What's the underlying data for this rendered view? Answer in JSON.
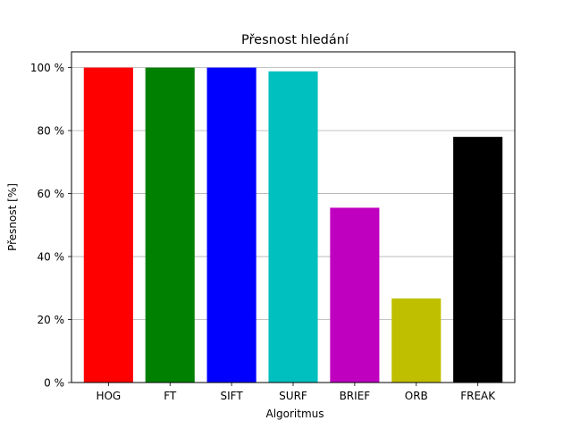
{
  "chart_data": {
    "type": "bar",
    "title": "Přesnost hledání",
    "xlabel": "Algoritmus",
    "ylabel": "Přesnost [%]",
    "categories": [
      "HOG",
      "FT",
      "SIFT",
      "SURF",
      "BRIEF",
      "ORB",
      "FREAK"
    ],
    "values": [
      100,
      100,
      100,
      98.8,
      55.5,
      26.7,
      78
    ],
    "colors": [
      "#ff0000",
      "#008000",
      "#0000ff",
      "#00bfbf",
      "#bf00bf",
      "#bfbf00",
      "#000000"
    ],
    "ylim": [
      0,
      105
    ],
    "yticks": [
      0,
      20,
      40,
      60,
      80,
      100
    ],
    "ytick_labels": [
      "0 %",
      "20 %",
      "40 %",
      "60 %",
      "80 %",
      "100 %"
    ],
    "grid": "horizontal"
  }
}
